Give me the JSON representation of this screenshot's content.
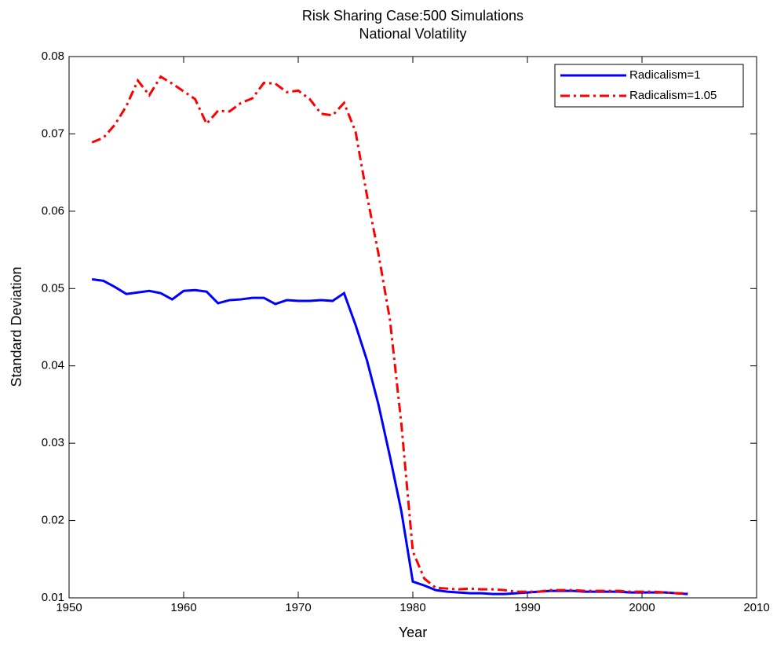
{
  "chart_data": {
    "type": "line",
    "title": "Risk Sharing Case:500 Simulations",
    "subtitle": "National Volatility",
    "x_label": "Year",
    "y_label": "Standard Deviation",
    "x": [
      1952,
      1953,
      1954,
      1955,
      1956,
      1957,
      1958,
      1959,
      1960,
      1961,
      1962,
      1963,
      1964,
      1965,
      1966,
      1967,
      1968,
      1969,
      1970,
      1971,
      1972,
      1973,
      1974,
      1975,
      1976,
      1977,
      1978,
      1979,
      1980,
      1981,
      1982,
      1983,
      1984,
      1985,
      1986,
      1987,
      1988,
      1989,
      1990,
      1991,
      1992,
      1993,
      1994,
      1995,
      1996,
      1997,
      1998,
      1999,
      2000,
      2001,
      2002,
      2003,
      2004
    ],
    "series": [
      {
        "name": "Radicalism=1",
        "color": "#0000ff",
        "style": "solid",
        "values": [
          0.0512,
          0.051,
          0.0502,
          0.0493,
          0.0495,
          0.0497,
          0.0494,
          0.0486,
          0.0497,
          0.0498,
          0.0496,
          0.0481,
          0.0485,
          0.0486,
          0.0488,
          0.0488,
          0.048,
          0.0485,
          0.0484,
          0.0484,
          0.0485,
          0.0484,
          0.0494,
          0.0453,
          0.0407,
          0.035,
          0.0283,
          0.0212,
          0.0121,
          0.0116,
          0.011,
          0.0108,
          0.0107,
          0.0106,
          0.0106,
          0.0105,
          0.0105,
          0.0106,
          0.0107,
          0.0108,
          0.0109,
          0.0109,
          0.0109,
          0.0108,
          0.0108,
          0.0108,
          0.0108,
          0.0107,
          0.0107,
          0.0107,
          0.0107,
          0.0106,
          0.0105
        ]
      },
      {
        "name": "Radicalism=1.05",
        "color": "#ff0000",
        "style": "dashdot",
        "values": [
          0.0689,
          0.0695,
          0.0712,
          0.0736,
          0.0769,
          0.075,
          0.0774,
          0.0765,
          0.0755,
          0.0745,
          0.0713,
          0.073,
          0.0729,
          0.074,
          0.0746,
          0.0766,
          0.0765,
          0.0754,
          0.0756,
          0.0745,
          0.0726,
          0.0724,
          0.074,
          0.0703,
          0.062,
          0.0545,
          0.046,
          0.0325,
          0.016,
          0.0125,
          0.0113,
          0.0112,
          0.0111,
          0.0112,
          0.0111,
          0.0111,
          0.011,
          0.0108,
          0.0108,
          0.0108,
          0.011,
          0.011,
          0.011,
          0.0109,
          0.0109,
          0.0109,
          0.0109,
          0.0108,
          0.0108,
          0.0108,
          0.0107,
          0.0106,
          0.0106
        ]
      }
    ],
    "xlim": [
      1950,
      2010
    ],
    "xticks": [
      1950,
      1960,
      1970,
      1980,
      1990,
      2000,
      2010
    ],
    "ylim": [
      0.01,
      0.08
    ],
    "yticks": [
      0.01,
      0.02,
      0.03,
      0.04,
      0.05,
      0.06,
      0.07,
      0.08
    ],
    "legend": "northeast"
  }
}
